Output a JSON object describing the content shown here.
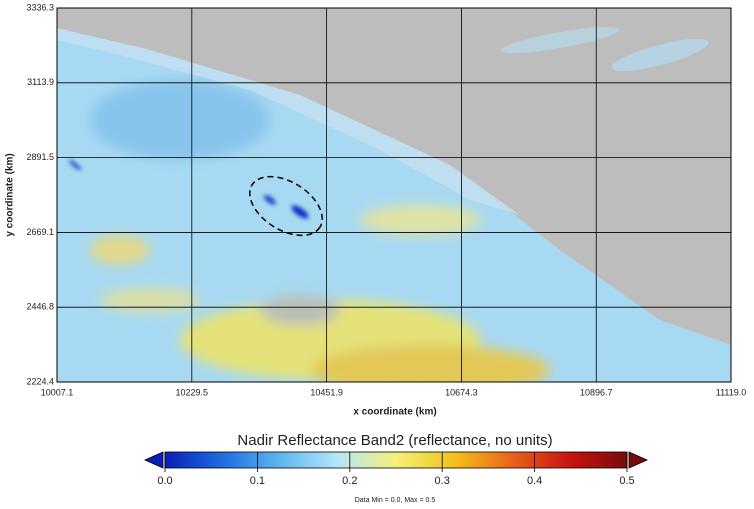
{
  "chart_data": {
    "type": "map",
    "xlabel": "x coordinate (km)",
    "ylabel": "y coordinate (km)",
    "xlim": [
      10007.1,
      11119
    ],
    "ylim": [
      2224.4,
      3336.3
    ],
    "xticks": [
      10007.1,
      10229.5,
      10451.9,
      10674.3,
      10896.7,
      {
        "value": 11119,
        "label": "11119.0"
      }
    ],
    "yticks": [
      2224.4,
      2446.8,
      2669.1,
      2891.5,
      3113.9,
      3336.3
    ],
    "grid": true,
    "colorbar": {
      "title": "Nadir Reflectance Band2 (reflectance, no units)",
      "lim": [
        0,
        0.5
      ],
      "ticks": [
        {
          "value": 0,
          "label": "0.0"
        },
        0.1,
        0.2,
        0.3,
        0.4,
        0.5
      ],
      "colors": [
        "#0a1fb8",
        "#1f6de0",
        "#5fb6f0",
        "#b8e6f8",
        "#f3f07a",
        "#f2c21a",
        "#e8641a",
        "#c81410",
        "#7a0a0a"
      ]
    },
    "note": "Data Min = 0.0, Max = 0.5"
  }
}
